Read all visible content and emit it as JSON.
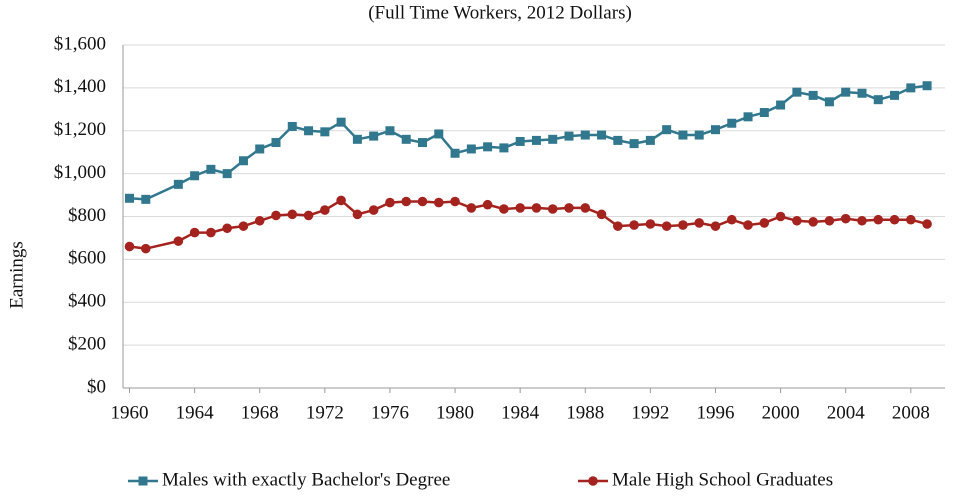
{
  "chart_data": {
    "type": "line",
    "subtitle": "(Full Time Workers, 2012 Dollars)",
    "y_label": "Earnings",
    "x": [
      1960,
      1961,
      1963,
      1964,
      1965,
      1966,
      1967,
      1968,
      1969,
      1970,
      1971,
      1972,
      1973,
      1974,
      1975,
      1976,
      1977,
      1978,
      1979,
      1980,
      1981,
      1982,
      1983,
      1984,
      1985,
      1986,
      1987,
      1988,
      1989,
      1990,
      1991,
      1992,
      1993,
      1994,
      1995,
      1996,
      1997,
      1998,
      1999,
      2000,
      2001,
      2002,
      2003,
      2004,
      2005,
      2006,
      2007,
      2008,
      2009
    ],
    "series": [
      {
        "name": "Males with exactly Bachelor's Degree",
        "color": "#31788f",
        "marker": "square",
        "values": [
          885,
          880,
          950,
          990,
          1020,
          1000,
          1060,
          1115,
          1145,
          1220,
          1200,
          1195,
          1240,
          1160,
          1175,
          1200,
          1160,
          1145,
          1185,
          1095,
          1115,
          1125,
          1120,
          1150,
          1155,
          1160,
          1175,
          1180,
          1180,
          1155,
          1140,
          1155,
          1205,
          1180,
          1180,
          1205,
          1235,
          1265,
          1285,
          1320,
          1380,
          1365,
          1335,
          1380,
          1375,
          1345,
          1365,
          1400,
          1410
        ]
      },
      {
        "name": "Male High School Graduates",
        "color": "#a5231e",
        "marker": "circle",
        "values": [
          660,
          650,
          685,
          725,
          725,
          745,
          755,
          780,
          805,
          810,
          805,
          830,
          875,
          810,
          830,
          865,
          870,
          870,
          865,
          870,
          840,
          855,
          835,
          840,
          840,
          835,
          840,
          840,
          810,
          755,
          760,
          765,
          755,
          760,
          770,
          755,
          785,
          760,
          770,
          800,
          780,
          775,
          780,
          790,
          780,
          785,
          785,
          785,
          765
        ]
      }
    ],
    "xlim": [
      1959.6,
      2010.1
    ],
    "xticks": [
      1960,
      1964,
      1968,
      1972,
      1976,
      1980,
      1984,
      1988,
      1992,
      1996,
      2000,
      2004,
      2008
    ],
    "ylim": [
      0,
      1600
    ],
    "yticks": [
      {
        "value": 0,
        "label": "$0"
      },
      {
        "value": 200,
        "label": "$200"
      },
      {
        "value": 400,
        "label": "$400"
      },
      {
        "value": 600,
        "label": "$600"
      },
      {
        "value": 800,
        "label": "$800"
      },
      {
        "value": 1000,
        "label": "$1,000"
      },
      {
        "value": 1200,
        "label": "$1,200"
      },
      {
        "value": 1400,
        "label": "$1,400"
      },
      {
        "value": 1600,
        "label": "$1,600"
      }
    ],
    "grid": true,
    "legend": "bottom"
  }
}
